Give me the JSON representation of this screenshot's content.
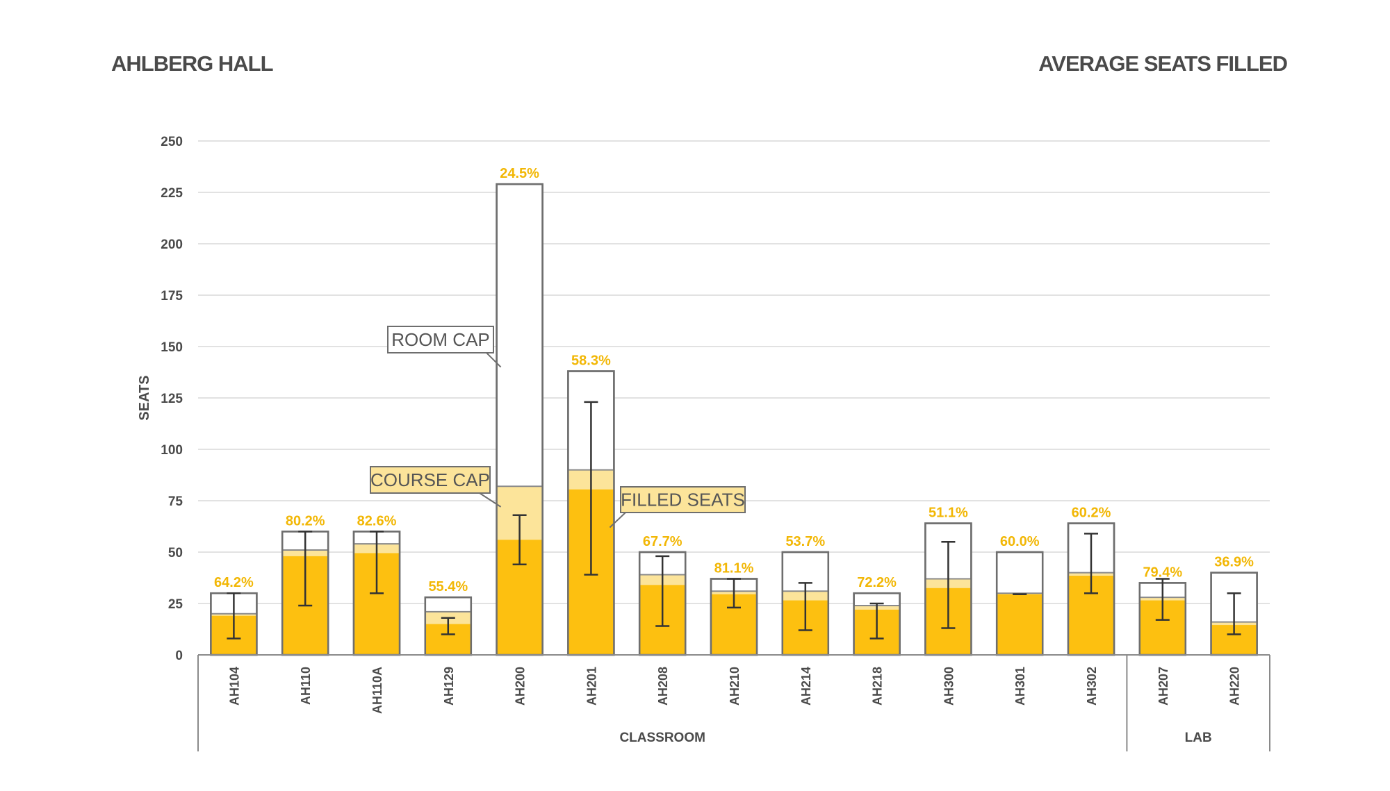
{
  "header": {
    "title": "AHLBERG HALL",
    "subtitle": "AVERAGE SEATS FILLED"
  },
  "colors": {
    "filled": "#FDC010",
    "course_cap": "#FCE49A",
    "room_cap_stroke": "#6E6E6E",
    "pct_label": "#F2B705",
    "grid": "#D9D9D9",
    "axis_text": "#4A4A4A",
    "error_bar": "#333333"
  },
  "chart_data": {
    "type": "bar",
    "title": "AVERAGE SEATS FILLED",
    "ylabel": "SEATS",
    "xlabel": "",
    "ylim": [
      0,
      250
    ],
    "yticks": [
      0,
      25,
      50,
      75,
      100,
      125,
      150,
      175,
      200,
      225,
      250
    ],
    "grid": true,
    "categories": [
      "AH104",
      "AH110",
      "AH110A",
      "AH129",
      "AH200",
      "AH201",
      "AH208",
      "AH210",
      "AH214",
      "AH218",
      "AH300",
      "AH301",
      "AH302",
      "AH207",
      "AH220"
    ],
    "groups": [
      {
        "name": "CLASSROOM",
        "count": 13
      },
      {
        "name": "LAB",
        "count": 2
      }
    ],
    "series": [
      {
        "name": "ROOM CAP",
        "values": [
          30,
          60,
          60,
          28,
          229,
          138,
          50,
          37,
          50,
          30,
          64,
          50,
          64,
          35,
          40
        ]
      },
      {
        "name": "COURSE CAP",
        "values": [
          20,
          51,
          54,
          21,
          82,
          90,
          39,
          31,
          31,
          24,
          37,
          30,
          40,
          28,
          16
        ]
      },
      {
        "name": "FILLED SEATS",
        "values": [
          19,
          48,
          49.5,
          15,
          56,
          80.5,
          34,
          29.5,
          26.5,
          22,
          32.5,
          29.5,
          38.5,
          26.5,
          14.5
        ]
      }
    ],
    "error_bars": {
      "low": [
        8,
        24,
        30,
        10,
        44,
        39,
        14,
        23,
        12,
        8,
        13,
        29.5,
        30,
        17,
        10
      ],
      "high": [
        30,
        60,
        60,
        18,
        68,
        123,
        48,
        37,
        35,
        25,
        55,
        29.5,
        59,
        37,
        30
      ]
    },
    "data_labels": [
      "64.2%",
      "80.2%",
      "82.6%",
      "55.4%",
      "24.5%",
      "58.3%",
      "67.7%",
      "81.1%",
      "53.7%",
      "72.2%",
      "51.1%",
      "60.0%",
      "60.2%",
      "79.4%",
      "36.9%"
    ],
    "annotations": {
      "room_cap": "ROOM CAP",
      "course_cap": "COURSE CAP",
      "filled_seats": "FILLED SEATS"
    }
  }
}
